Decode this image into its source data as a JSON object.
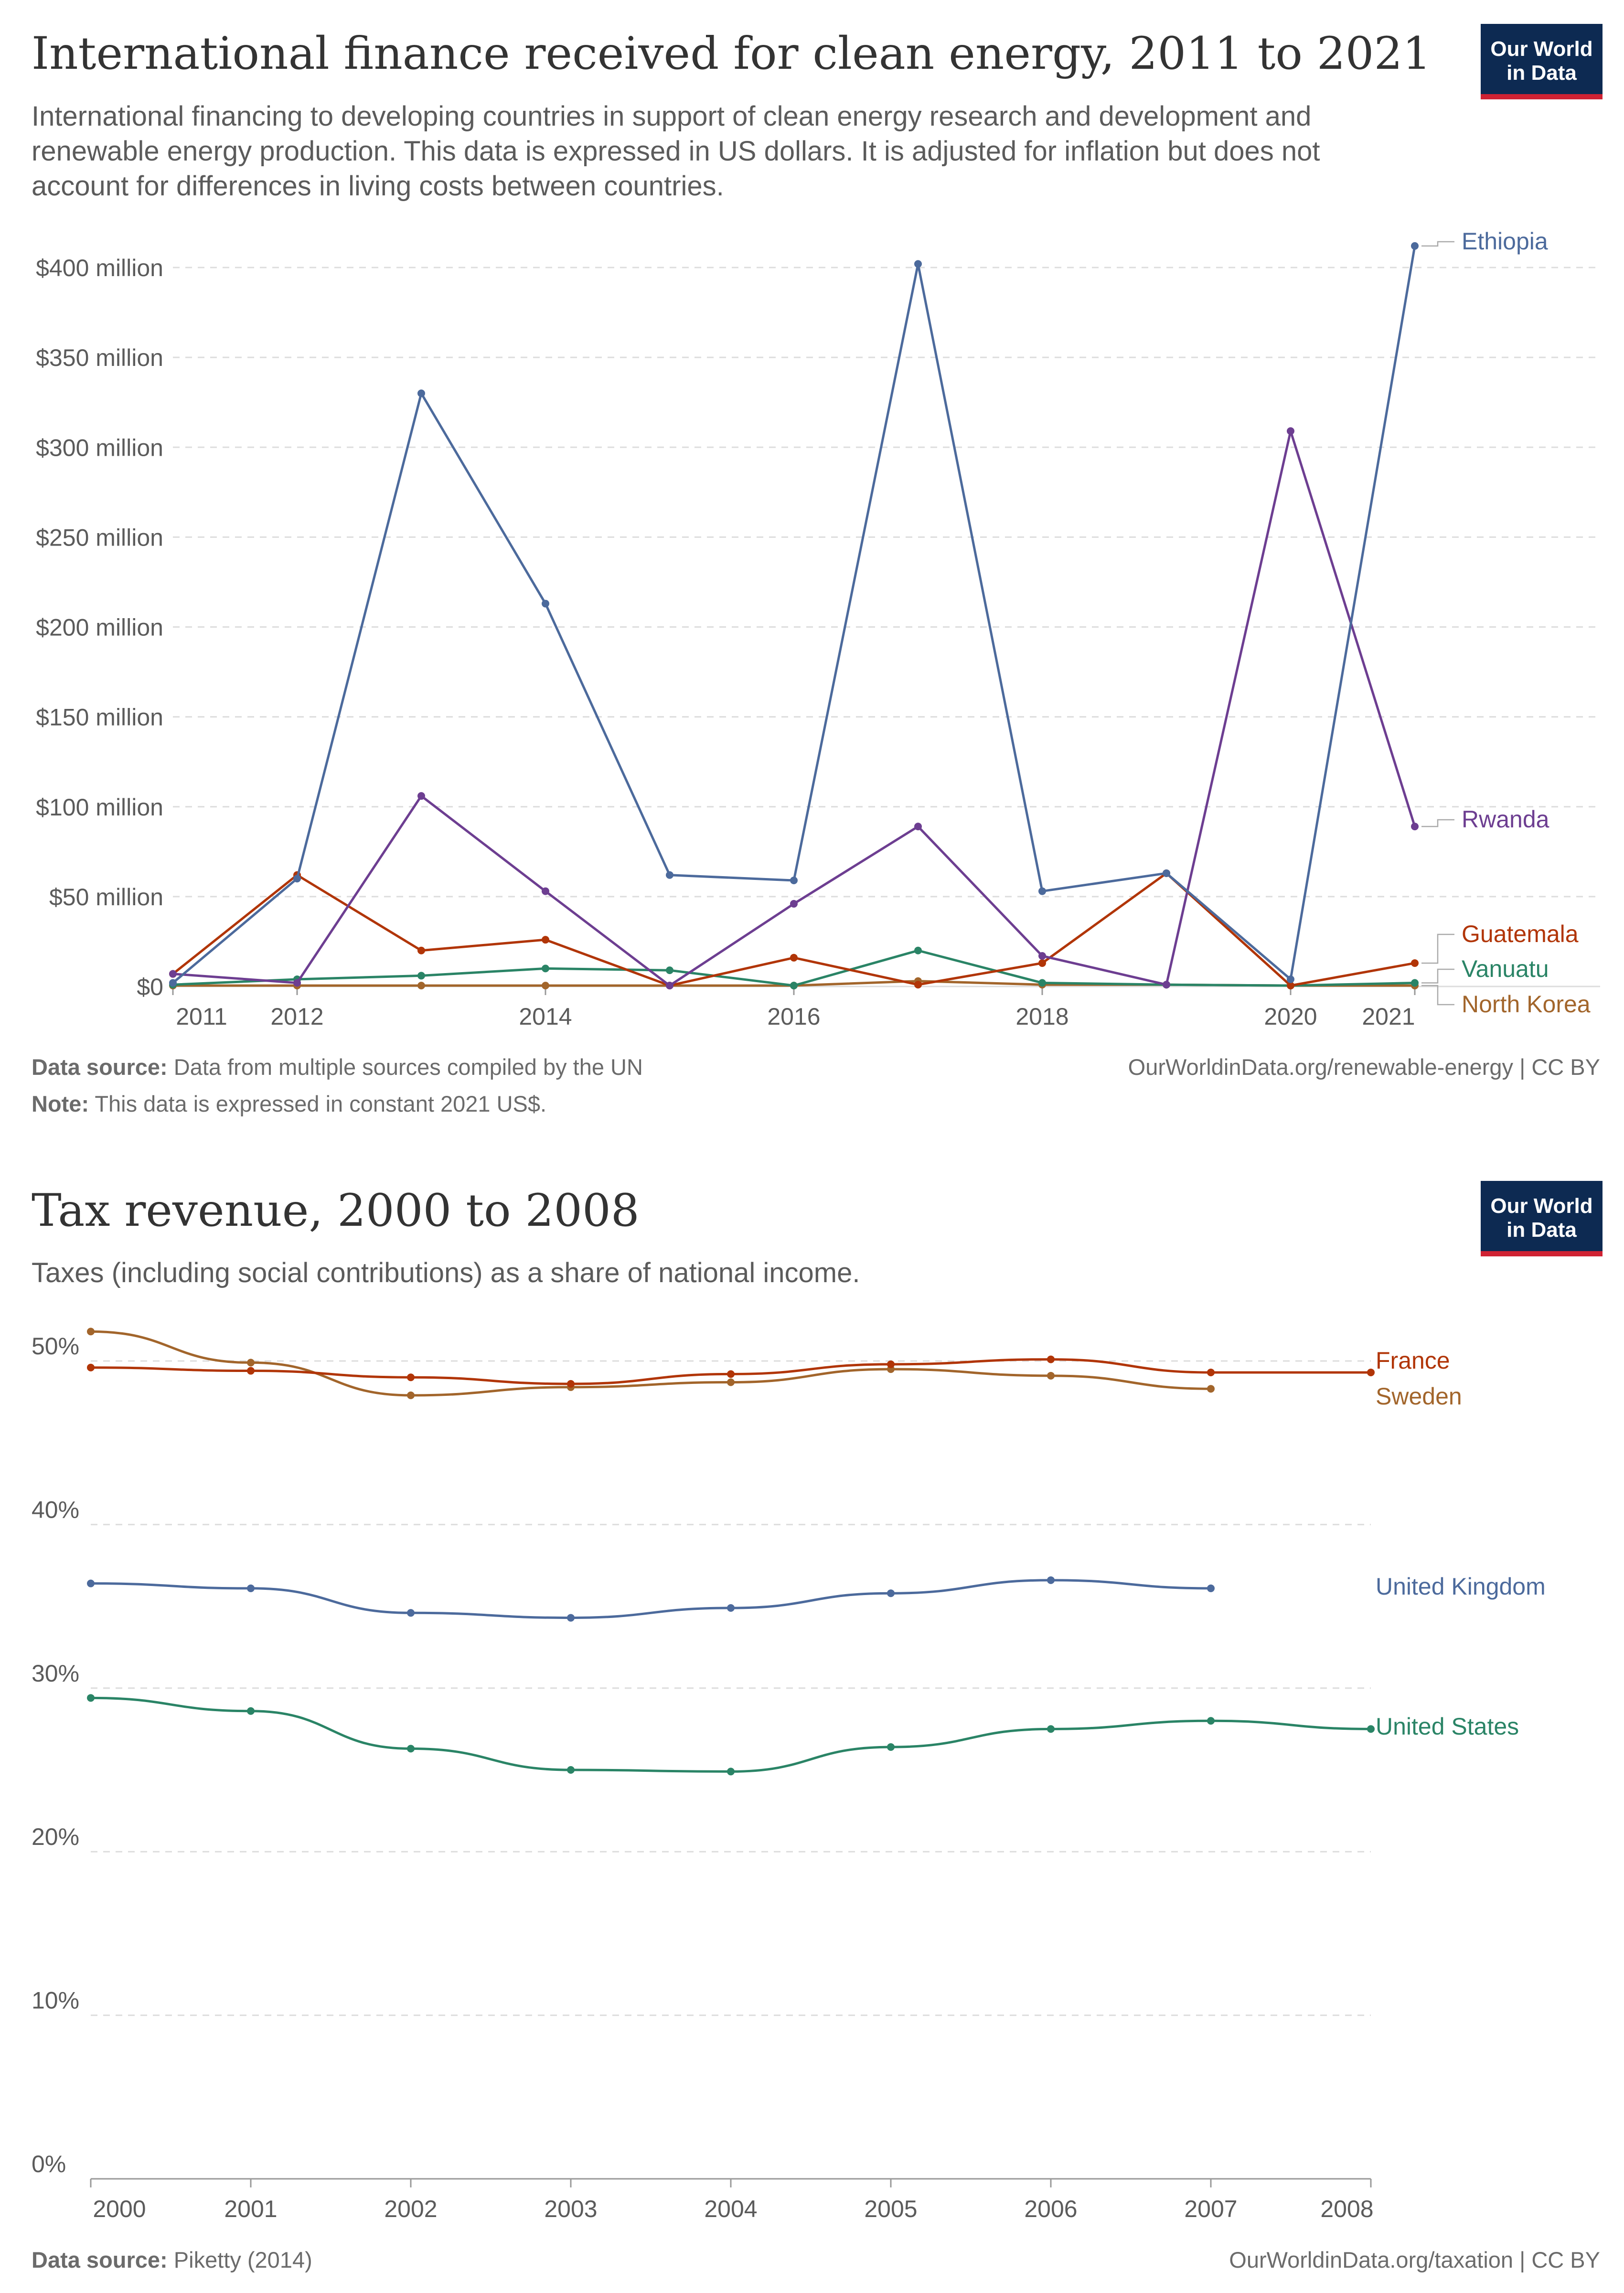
{
  "logo": {
    "line1": "Our World",
    "line2": "in Data"
  },
  "chart1": {
    "title": "International finance received for clean energy, 2011 to 2021",
    "subtitle": "International financing to developing countries in support of clean energy research and development and renewable energy production. This data is expressed in US dollars. It is adjusted for inflation but does not account for differences in living costs between countries.",
    "source_label": "Data source:",
    "source_text": "Data from multiple sources compiled by the UN",
    "note_label": "Note:",
    "note_text": "This data is expressed in constant 2021 US$.",
    "url": "OurWorldinData.org/renewable-energy | CC BY"
  },
  "chart2": {
    "title": "Tax revenue, 2000 to 2008",
    "subtitle": "Taxes (including social contributions) as a share of national income.",
    "source_label": "Data source:",
    "source_text": "Piketty (2014)",
    "url": "OurWorldinData.org/taxation | CC BY"
  },
  "chart_data": [
    {
      "type": "line",
      "title": "International finance received for clean energy, 2011 to 2021",
      "ylim": [
        0,
        400
      ],
      "yticks": [
        0,
        50,
        100,
        150,
        200,
        250,
        300,
        350,
        400
      ],
      "ytick_labels": [
        "$0",
        "$50 million",
        "$100 million",
        "$150 million",
        "$200 million",
        "$250 million",
        "$300 million",
        "$350 million",
        "$400 million"
      ],
      "xlim": [
        2011,
        2021
      ],
      "xticks": [
        2011,
        2012,
        2014,
        2016,
        2018,
        2020,
        2021
      ],
      "x": [
        2011,
        2012,
        2013,
        2014,
        2015,
        2016,
        2017,
        2018,
        2019,
        2020,
        2021
      ],
      "series": [
        {
          "name": "North Korea",
          "color": "#a2652b",
          "values": [
            0.5,
            0.5,
            0.5,
            0.5,
            0.5,
            0.5,
            3,
            1,
            1,
            0.5,
            0.5
          ]
        },
        {
          "name": "Vanuatu",
          "color": "#2a8466",
          "values": [
            1,
            4,
            6,
            10,
            9,
            0.5,
            20,
            2,
            1,
            0.5,
            2
          ]
        },
        {
          "name": "Guatemala",
          "color": "#b13507",
          "values": [
            7,
            62,
            20,
            26,
            0.5,
            16,
            1,
            13,
            63,
            0.5,
            13
          ]
        },
        {
          "name": "Rwanda",
          "color": "#6d3e91",
          "values": [
            7,
            2,
            106,
            53,
            0.5,
            46,
            89,
            17,
            1,
            309,
            89
          ]
        },
        {
          "name": "Ethiopia",
          "color": "#4c6a9c",
          "values": [
            2,
            60,
            330,
            213,
            62,
            59,
            402,
            53,
            63,
            4,
            412
          ]
        }
      ]
    },
    {
      "type": "line",
      "title": "Tax revenue, 2000 to 2008",
      "ylim": [
        0,
        50
      ],
      "yticks": [
        0,
        10,
        20,
        30,
        40,
        50
      ],
      "ytick_labels": [
        "0%",
        "10%",
        "20%",
        "30%",
        "40%",
        "50%"
      ],
      "xlim": [
        2000,
        2008
      ],
      "xticks": [
        2000,
        2001,
        2002,
        2003,
        2004,
        2005,
        2006,
        2007,
        2008
      ],
      "series": [
        {
          "name": "Sweden",
          "color": "#a2652b",
          "x": [
            2000,
            2001,
            2002,
            2003,
            2004,
            2005,
            2006,
            2007
          ],
          "values": [
            51.8,
            49.9,
            47.9,
            48.4,
            48.7,
            49.5,
            49.1,
            48.3
          ]
        },
        {
          "name": "France",
          "color": "#b13507",
          "x": [
            2000,
            2001,
            2002,
            2003,
            2004,
            2005,
            2006,
            2007,
            2008
          ],
          "values": [
            49.6,
            49.4,
            49.0,
            48.6,
            49.2,
            49.8,
            50.1,
            49.3,
            49.3
          ]
        },
        {
          "name": "United Kingdom",
          "color": "#4c6a9c",
          "x": [
            2000,
            2001,
            2002,
            2003,
            2004,
            2005,
            2006,
            2007
          ],
          "values": [
            36.4,
            36.1,
            34.6,
            34.3,
            34.9,
            35.8,
            36.6,
            36.1
          ]
        },
        {
          "name": "United States",
          "color": "#2a8466",
          "x": [
            2000,
            2001,
            2002,
            2003,
            2004,
            2005,
            2006,
            2007,
            2008
          ],
          "values": [
            29.4,
            28.6,
            26.3,
            25.0,
            24.9,
            26.4,
            27.5,
            28.0,
            27.5
          ]
        }
      ]
    }
  ]
}
